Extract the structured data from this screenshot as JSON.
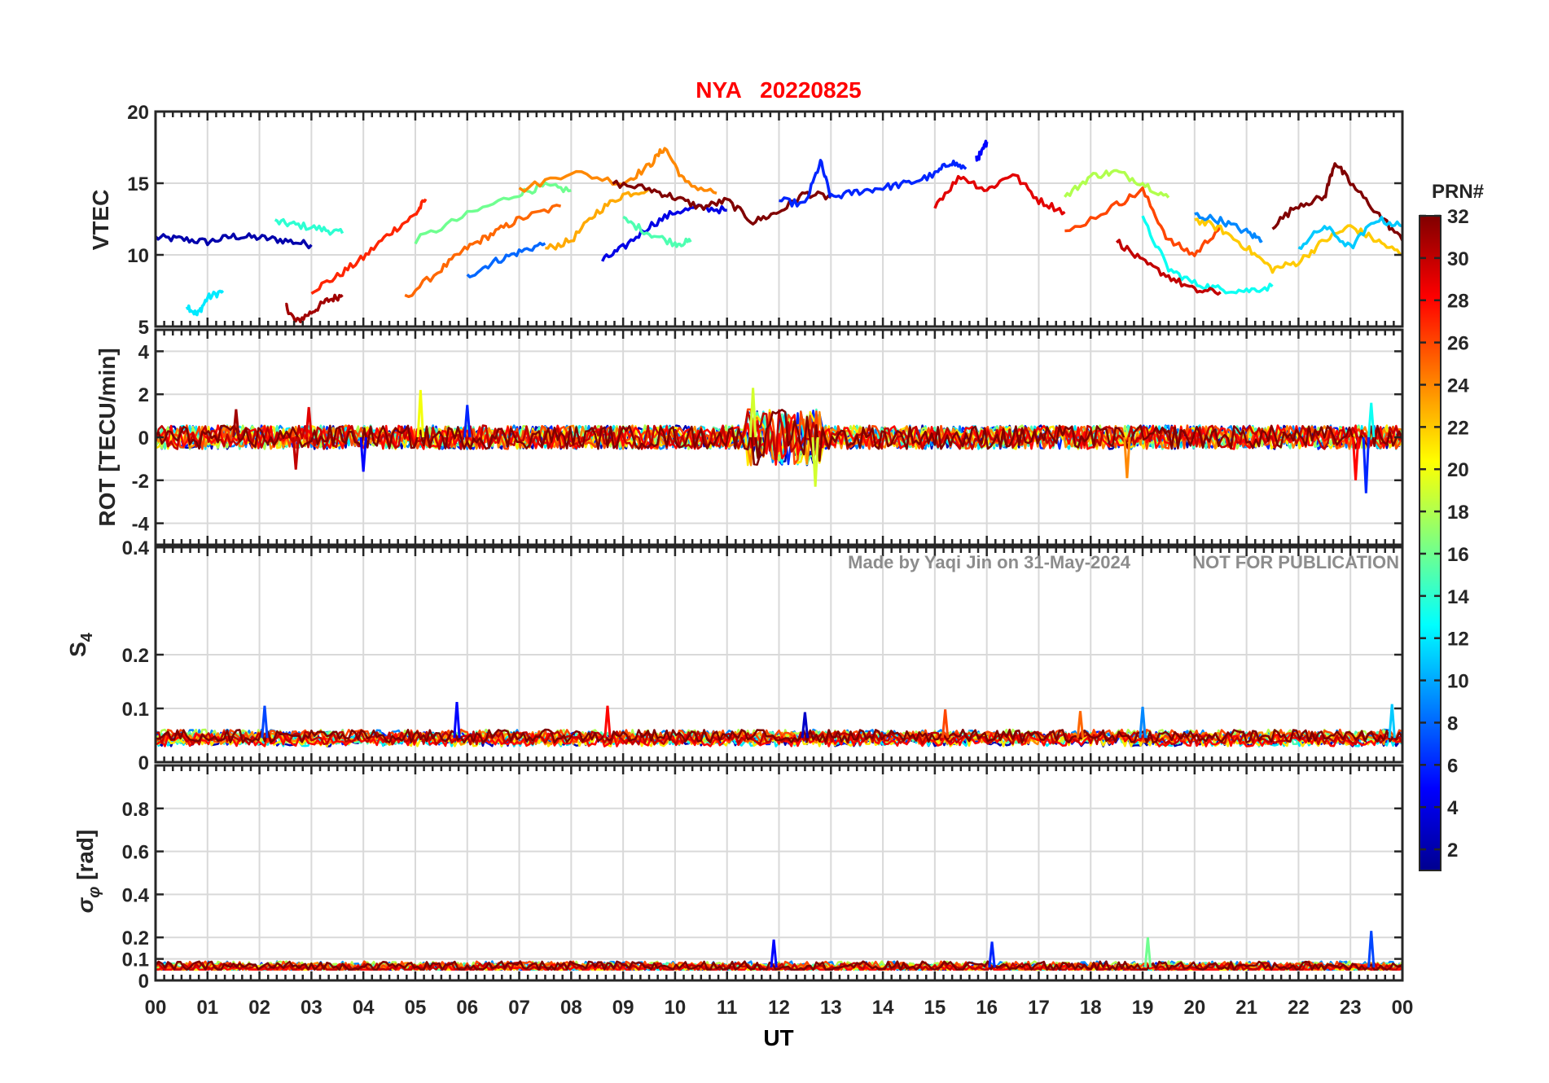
{
  "chart_data": [
    {
      "type": "line",
      "title": "NYA   20220825",
      "ylabel": "VTEC",
      "ylim": [
        5,
        20
      ],
      "yticks": [
        "5",
        "10",
        "15",
        "20"
      ],
      "ytick_values": [
        5,
        10,
        15,
        20
      ],
      "xlim": [
        0,
        24
      ],
      "grid": true,
      "series_note": "One trace per GPS satellite PRN, colored by PRN (colorbar).",
      "series": [
        {
          "name": "PRN 2",
          "prn": 2,
          "x": [
            0.0,
            0.5,
            1.0,
            1.5,
            2.0,
            2.5,
            3.0
          ],
          "values": [
            11.2,
            11.1,
            10.9,
            11.3,
            11.2,
            11.0,
            10.7
          ]
        },
        {
          "name": "PRN 12",
          "prn": 12,
          "x": [
            0.6,
            0.8,
            1.0,
            1.3
          ],
          "values": [
            6.5,
            5.8,
            7.0,
            7.5
          ]
        },
        {
          "name": "PRN 14",
          "prn": 14,
          "x": [
            2.3,
            2.7,
            3.2,
            3.6
          ],
          "values": [
            12.3,
            12.1,
            11.8,
            11.5
          ]
        },
        {
          "name": "PRN 31",
          "prn": 31,
          "x": [
            2.5,
            2.7,
            3.0,
            3.3,
            3.6
          ],
          "values": [
            6.5,
            5.3,
            6.0,
            6.8,
            7.2
          ]
        },
        {
          "name": "PRN 27",
          "prn": 27,
          "x": [
            3.0,
            3.5,
            4.0,
            4.5,
            5.0,
            5.2
          ],
          "values": [
            7.5,
            8.5,
            9.8,
            11.5,
            12.8,
            13.9
          ]
        },
        {
          "name": "PRN 25",
          "prn": 25,
          "x": [
            4.8,
            5.5,
            6.0,
            6.5,
            7.0,
            7.8
          ],
          "values": [
            7.0,
            9.0,
            10.5,
            11.5,
            12.5,
            13.4
          ]
        },
        {
          "name": "PRN 8",
          "prn": 8,
          "x": [
            6.0,
            6.5,
            7.0,
            7.5
          ],
          "values": [
            8.5,
            9.5,
            10.2,
            10.8
          ]
        },
        {
          "name": "PRN 16",
          "prn": 16,
          "x": [
            5.0,
            6.0,
            7.0,
            7.5,
            8.0
          ],
          "values": [
            11.0,
            12.8,
            14.3,
            14.8,
            14.5
          ]
        },
        {
          "name": "PRN 23",
          "prn": 23,
          "x": [
            7.5,
            8.0,
            8.5,
            9.0,
            9.5
          ],
          "values": [
            10.4,
            11.0,
            13.0,
            14.2,
            14.6
          ]
        },
        {
          "name": "PRN 24",
          "prn": 24,
          "x": [
            7.0,
            8.0,
            9.0,
            9.5,
            9.8,
            10.2,
            10.8
          ],
          "values": [
            14.5,
            15.8,
            15.0,
            16.2,
            17.5,
            15.0,
            14.3
          ]
        },
        {
          "name": "PRN 4",
          "prn": 4,
          "x": [
            8.6,
            9.0,
            9.5,
            10.0,
            10.5,
            11.0
          ],
          "values": [
            9.6,
            10.5,
            12.0,
            13.0,
            13.3,
            13.1
          ]
        },
        {
          "name": "PRN 15",
          "prn": 15,
          "x": [
            9.0,
            9.5,
            10.0,
            10.3
          ],
          "values": [
            12.5,
            11.5,
            10.8,
            10.9
          ]
        },
        {
          "name": "PRN 32",
          "prn": 32,
          "x": [
            8.8,
            9.5,
            10.0,
            10.5,
            11.0,
            11.5,
            12.0,
            12.5,
            13.0
          ],
          "values": [
            15.0,
            14.6,
            14.0,
            13.3,
            13.8,
            12.3,
            13.0,
            14.3,
            14.0
          ]
        },
        {
          "name": "PRN 6",
          "prn": 6,
          "x": [
            12.0,
            12.5,
            12.8,
            13.0,
            13.5,
            14.0,
            14.5,
            15.0,
            15.3,
            15.6
          ],
          "values": [
            13.8,
            13.5,
            16.5,
            14.0,
            14.4,
            14.7,
            15.0,
            15.6,
            16.5,
            16.0
          ]
        },
        {
          "name": "PRN 5",
          "prn": 5,
          "x": [
            15.8,
            15.9,
            16.0
          ],
          "values": [
            16.7,
            17.1,
            17.9
          ]
        },
        {
          "name": "PRN 29",
          "prn": 29,
          "x": [
            15.0,
            15.5,
            16.0,
            16.5,
            17.0,
            17.5
          ],
          "values": [
            13.5,
            15.5,
            14.5,
            15.7,
            13.8,
            13.0
          ]
        },
        {
          "name": "PRN 18",
          "prn": 18,
          "x": [
            17.5,
            18.0,
            18.5,
            19.0,
            19.5
          ],
          "values": [
            14.0,
            15.5,
            15.8,
            15.0,
            14.0
          ]
        },
        {
          "name": "PRN 26",
          "prn": 26,
          "x": [
            17.5,
            18.5,
            19.0,
            19.5,
            20.0,
            20.5
          ],
          "values": [
            11.5,
            13.5,
            14.5,
            11.0,
            10.0,
            12.0
          ]
        },
        {
          "name": "PRN 13",
          "prn": 13,
          "x": [
            19.0,
            19.5,
            20.0,
            20.5,
            21.0,
            21.5
          ],
          "values": [
            12.5,
            9.0,
            8.0,
            7.6,
            7.5,
            7.8
          ]
        },
        {
          "name": "PRN 30",
          "prn": 30,
          "x": [
            18.5,
            19.0,
            19.5,
            20.0,
            20.5
          ],
          "values": [
            11.0,
            9.5,
            8.5,
            7.5,
            7.4
          ]
        },
        {
          "name": "PRN 22",
          "prn": 22,
          "x": [
            20.0,
            20.5,
            21.0,
            21.5,
            22.0,
            22.5,
            23.0,
            23.5,
            24.0
          ],
          "values": [
            12.5,
            11.8,
            10.5,
            9.0,
            9.5,
            11.0,
            12.0,
            11.0,
            10.0
          ]
        },
        {
          "name": "PRN 9",
          "prn": 9,
          "x": [
            20.0,
            20.5,
            21.0,
            21.3
          ],
          "values": [
            12.8,
            12.4,
            11.6,
            11.0
          ]
        },
        {
          "name": "PRN 32b",
          "prn": 32,
          "x": [
            21.5,
            22.0,
            22.5,
            22.7,
            23.0,
            23.5,
            24.0
          ],
          "values": [
            12.0,
            13.5,
            14.0,
            16.5,
            15.0,
            13.0,
            11.0
          ]
        },
        {
          "name": "PRN 11",
          "prn": 11,
          "x": [
            22.0,
            22.5,
            23.0,
            23.5,
            24.0
          ],
          "values": [
            10.5,
            12.0,
            10.5,
            12.5,
            12.0
          ]
        }
      ]
    },
    {
      "type": "line",
      "ylabel": "ROT [TECU/min]",
      "ylim": [
        -5,
        5
      ],
      "yticks": [
        "-4",
        "-2",
        "0",
        "2",
        "4"
      ],
      "ytick_values": [
        -4,
        -2,
        0,
        2,
        4
      ],
      "xlim": [
        0,
        24
      ],
      "grid": true,
      "series_note": "Rate of TEC for every PRN, centered near 0.",
      "baseline": 0,
      "spikes": [
        {
          "x": 1.55,
          "value": 1.3,
          "prn": 31
        },
        {
          "x": 2.7,
          "value": -1.5,
          "prn": 30
        },
        {
          "x": 2.95,
          "value": 1.4,
          "prn": 29
        },
        {
          "x": 4.0,
          "value": -1.6,
          "prn": 5
        },
        {
          "x": 5.1,
          "value": 2.2,
          "prn": 20
        },
        {
          "x": 6.0,
          "value": 1.5,
          "prn": 6
        },
        {
          "x": 11.5,
          "value": 2.3,
          "prn": 19
        },
        {
          "x": 11.6,
          "value": -1.0,
          "prn": 32
        },
        {
          "x": 12.7,
          "value": -2.3,
          "prn": 19
        },
        {
          "x": 18.7,
          "value": -1.9,
          "prn": 24
        },
        {
          "x": 23.1,
          "value": -2.0,
          "prn": 28
        },
        {
          "x": 23.3,
          "value": -2.6,
          "prn": 6
        },
        {
          "x": 23.4,
          "value": 1.6,
          "prn": 13
        }
      ]
    },
    {
      "type": "line",
      "ylabel": "S4",
      "ylim": [
        0,
        0.4
      ],
      "yticks": [
        "0",
        "0.1",
        "0.2",
        "0.4"
      ],
      "ytick_values": [
        0,
        0.1,
        0.2,
        0.4
      ],
      "xlim": [
        0,
        24
      ],
      "grid": true,
      "series_note": "Amplitude scintillation index for every PRN, mostly 0.03-0.07.",
      "baseline": 0.045,
      "spikes": [
        {
          "x": 2.1,
          "value": 0.105,
          "prn": 7
        },
        {
          "x": 5.8,
          "value": 0.112,
          "prn": 5
        },
        {
          "x": 8.7,
          "value": 0.105,
          "prn": 28
        },
        {
          "x": 12.5,
          "value": 0.093,
          "prn": 3
        },
        {
          "x": 15.2,
          "value": 0.098,
          "prn": 26
        },
        {
          "x": 17.8,
          "value": 0.095,
          "prn": 25
        },
        {
          "x": 19.0,
          "value": 0.103,
          "prn": 9
        },
        {
          "x": 23.8,
          "value": 0.108,
          "prn": 11
        }
      ]
    },
    {
      "type": "line",
      "ylabel": "σφ [rad]",
      "ylim": [
        0,
        1
      ],
      "yticks": [
        "0",
        "0.1",
        "0.2",
        "0.4",
        "0.6",
        "0.8"
      ],
      "ytick_values": [
        0,
        0.1,
        0.2,
        0.4,
        0.6,
        0.8
      ],
      "xlim": [
        0,
        24
      ],
      "xticks": [
        "00",
        "01",
        "02",
        "03",
        "04",
        "05",
        "06",
        "07",
        "08",
        "09",
        "10",
        "11",
        "12",
        "13",
        "14",
        "15",
        "16",
        "17",
        "18",
        "19",
        "20",
        "21",
        "22",
        "23",
        "00"
      ],
      "xlabel": "UT",
      "grid": true,
      "series_note": "Phase scintillation index for every PRN, mostly 0.03-0.1.",
      "baseline": 0.06,
      "spikes": [
        {
          "x": 11.9,
          "value": 0.19,
          "prn": 5
        },
        {
          "x": 16.1,
          "value": 0.18,
          "prn": 6
        },
        {
          "x": 19.1,
          "value": 0.2,
          "prn": 16
        },
        {
          "x": 23.4,
          "value": 0.23,
          "prn": 7
        }
      ]
    }
  ],
  "colorbar": {
    "title": "PRN#",
    "colormap": "jet",
    "range": [
      1,
      32
    ],
    "ticks": [
      "2",
      "4",
      "6",
      "8",
      "10",
      "12",
      "14",
      "16",
      "18",
      "20",
      "22",
      "24",
      "26",
      "28",
      "30",
      "32"
    ],
    "tick_values": [
      2,
      4,
      6,
      8,
      10,
      12,
      14,
      16,
      18,
      20,
      22,
      24,
      26,
      28,
      30,
      32
    ]
  },
  "watermark": {
    "made_by": "Made by Yaqi Jin on 31-May-2024",
    "notice": "NOT FOR PUBLICATION"
  }
}
